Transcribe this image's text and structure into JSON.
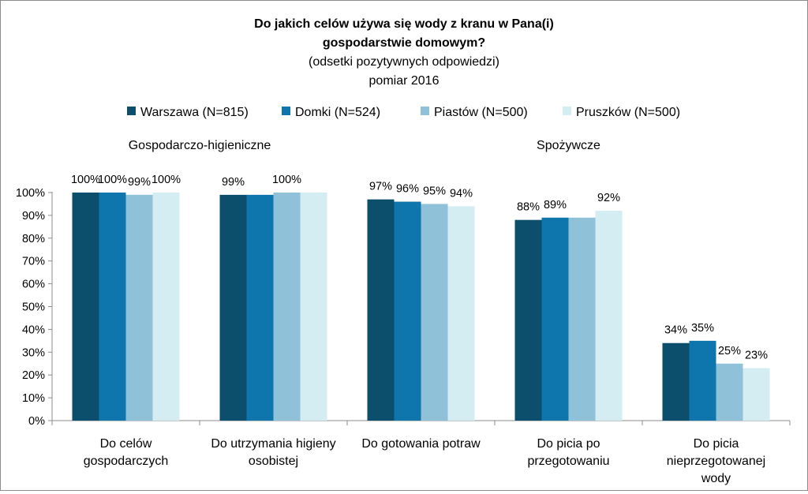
{
  "chart_data": {
    "type": "bar",
    "title_lines": [
      "Do jakich celów używa się wody z kranu w Pana(i)",
      "gospodarstwie domowym?"
    ],
    "subtitle_lines": [
      "(odsetki pozytywnych odpowiedzi)",
      "pomiar 2016"
    ],
    "group_headers": [
      {
        "label": "Gospodarczo-higieniczne",
        "categories": [
          0,
          1
        ]
      },
      {
        "label": "Spożywcze",
        "categories": [
          2,
          3,
          4
        ]
      }
    ],
    "categories": [
      [
        "Do celów",
        "gospodarczych"
      ],
      [
        "Do utrzymania higieny",
        "osobistej"
      ],
      [
        "Do gotowania potraw"
      ],
      [
        "Do picia po",
        "przegotowaniu"
      ],
      [
        "Do picia",
        "nieprzegotowanej",
        "wody"
      ]
    ],
    "series": [
      {
        "name": "Warszawa (N=815)",
        "color": "#0b4f6c",
        "values": [
          100,
          99,
          97,
          88,
          34
        ]
      },
      {
        "name": "Domki (N=524)",
        "color": "#0f76ad",
        "values": [
          100,
          99,
          96,
          89,
          35
        ]
      },
      {
        "name": "Piastów (N=500)",
        "color": "#8fc1d9",
        "values": [
          99,
          100,
          95,
          89,
          25
        ]
      },
      {
        "name": "Pruszków (N=500)",
        "color": "#d3edf3",
        "values": [
          100,
          100,
          94,
          92,
          23
        ]
      }
    ],
    "data_labels": [
      [
        "100%",
        "100%",
        "99%",
        "100%"
      ],
      [
        "99%",
        "",
        "100%",
        ""
      ],
      [
        "97%",
        "96%",
        "95%",
        "94%"
      ],
      [
        "88%",
        "89%",
        "",
        "92%"
      ],
      [
        "34%",
        "35%",
        "25%",
        "23%"
      ]
    ],
    "y_ticks": [
      "0%",
      "10%",
      "20%",
      "30%",
      "40%",
      "50%",
      "60%",
      "70%",
      "80%",
      "90%",
      "100%"
    ],
    "ylim": [
      0,
      100
    ],
    "grid": false,
    "legend_position": "top"
  }
}
